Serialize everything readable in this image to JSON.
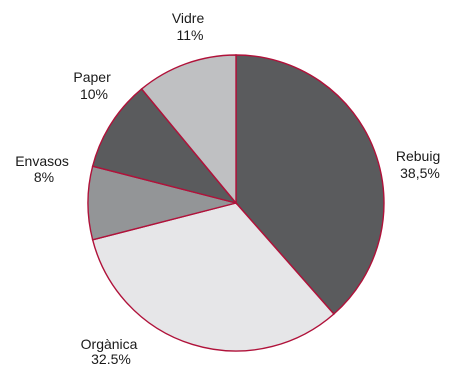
{
  "chart_data": {
    "type": "pie",
    "title": "",
    "start_angle_deg": 0,
    "direction": "clockwise",
    "slices": [
      {
        "name": "Rebuig",
        "label_line1": "Rebuig",
        "label_line2": "38,5%",
        "value": 38.5,
        "color": "#5a5b5d"
      },
      {
        "name": "Orgànica",
        "label_line1": "Orgànica",
        "label_line2": "32.5%",
        "value": 32.5,
        "color": "#e6e6e8"
      },
      {
        "name": "Envasos",
        "label_line1": "Envasos",
        "label_line2": "8%",
        "value": 8,
        "color": "#939597"
      },
      {
        "name": "Paper",
        "label_line1": "Paper",
        "label_line2": "10%",
        "value": 10,
        "color": "#5a5b5d"
      },
      {
        "name": "Vidre",
        "label_line1": "Vidre",
        "label_line2": "11%",
        "value": 11,
        "color": "#bfc0c2"
      }
    ],
    "border_color": "#b0123a"
  }
}
